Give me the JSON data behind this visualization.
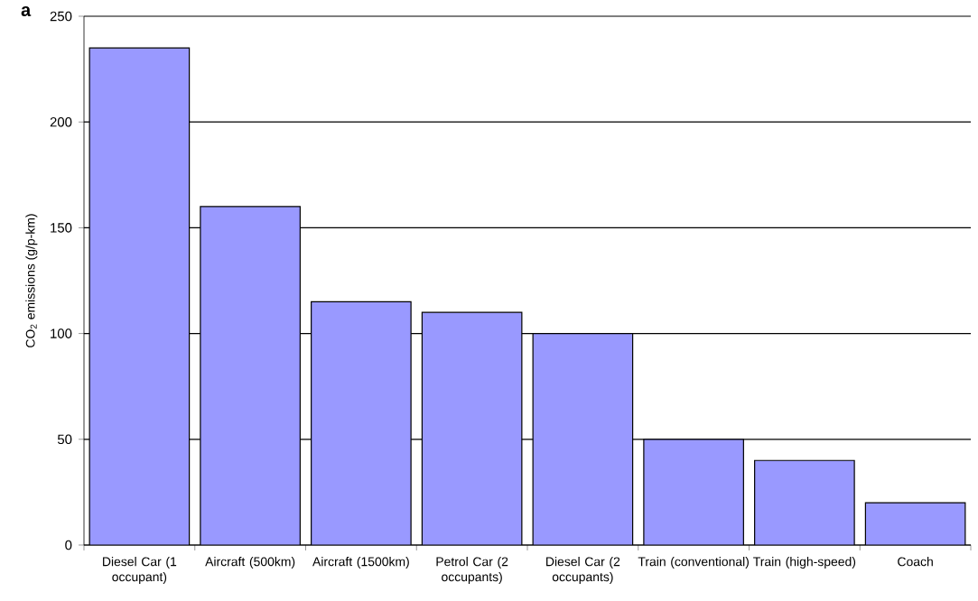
{
  "chart_data": {
    "type": "bar",
    "ylabel": "CO$_{2}$ emissions (g/p-km)",
    "categories": [
      "Diesel Car (1 occupant)",
      "Aircraft (500km)",
      "Aircraft (1500km)",
      "Petrol Car (2 occupants)",
      "Diesel Car (2 occupants)",
      "Train (conventional)",
      "Train (high-speed)",
      "Coach"
    ],
    "values": [
      235,
      160,
      115,
      110,
      100,
      50,
      40,
      20
    ],
    "color": "#9999ff",
    "ylim": [
      0,
      250
    ],
    "yticks": [
      0,
      50,
      100,
      150,
      200,
      250
    ],
    "grid": "y",
    "annotations": [
      "a"
    ]
  }
}
